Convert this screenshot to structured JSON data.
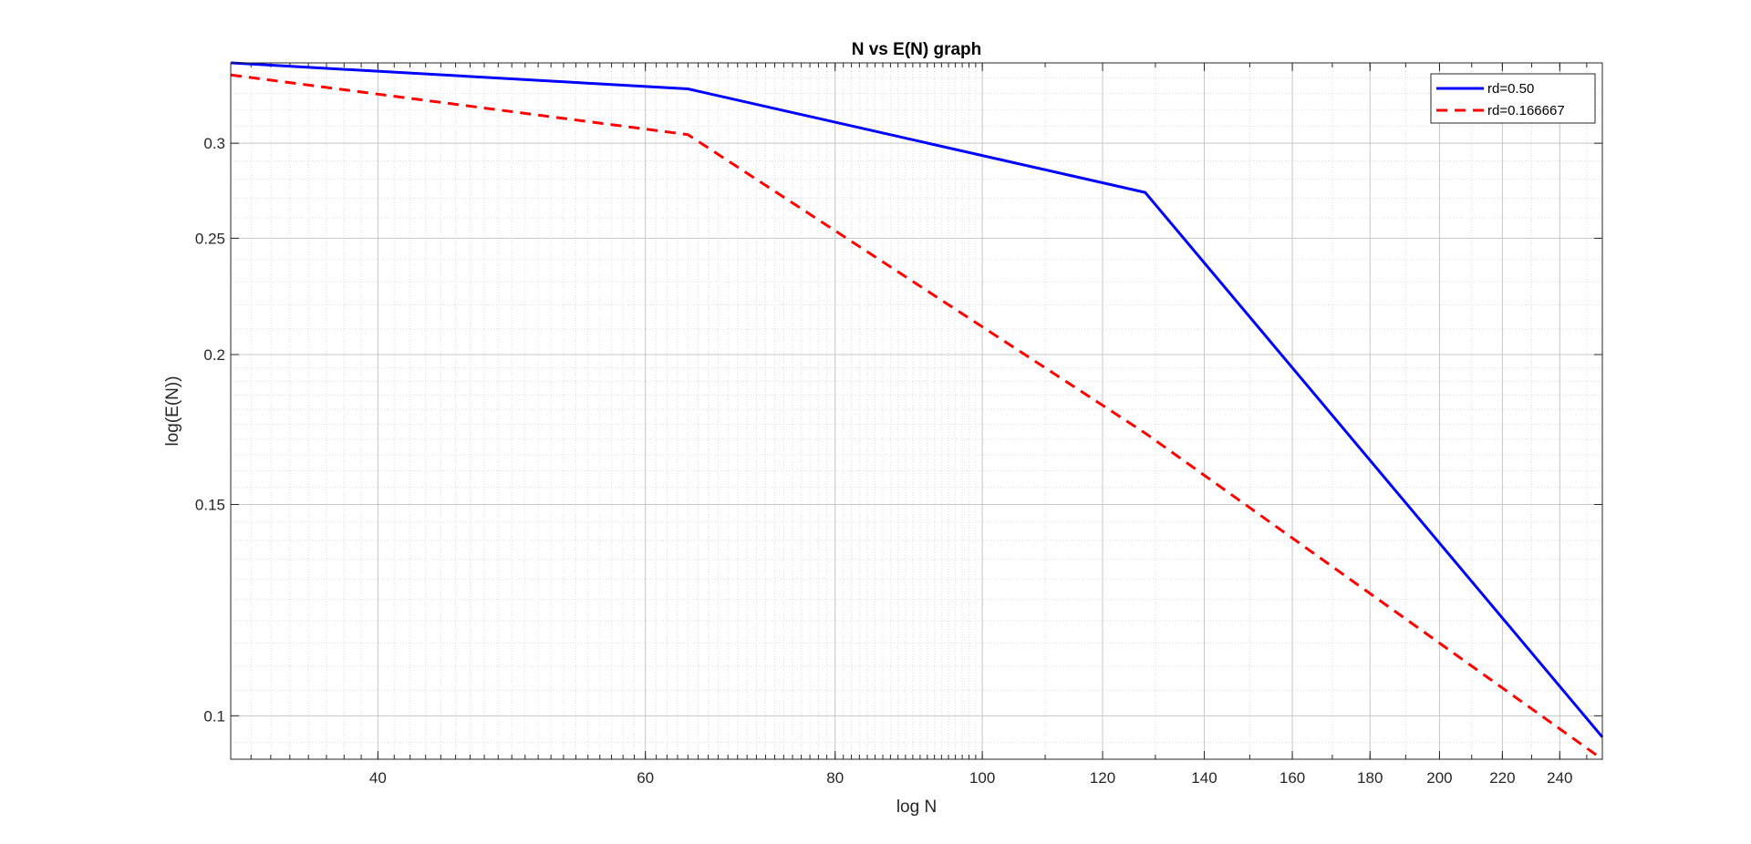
{
  "chart_data": {
    "type": "line",
    "title": "N vs E(N) graph",
    "xlabel": "log N",
    "ylabel": "log(E(N))",
    "xscale": "log",
    "yscale": "log",
    "xlim": [
      32,
      256
    ],
    "ylim": [
      0.092,
      0.35
    ],
    "grid": true,
    "minor_grid": true,
    "legend_position": "top-right",
    "xticks": [
      40,
      60,
      80,
      100,
      120,
      140,
      160,
      180,
      200,
      220,
      240
    ],
    "xtick_labels": [
      "40",
      "60",
      "80",
      "100",
      "120",
      "140",
      "160",
      "180",
      "200",
      "220",
      "240"
    ],
    "yticks": [
      0.1,
      0.15,
      0.2,
      0.25,
      0.3
    ],
    "ytick_labels": [
      "0.1",
      "0.15",
      "0.2",
      "0.25",
      "0.3"
    ],
    "x": [
      32,
      64,
      128,
      256
    ],
    "series": [
      {
        "name": "rd=0.50",
        "values": [
          0.35,
          0.333,
          0.273,
          0.096
        ],
        "color": "#0000ff",
        "style": "solid"
      },
      {
        "name": "rd=0.166667",
        "values": [
          0.342,
          0.305,
          0.172,
          0.092
        ],
        "color": "#ff0000",
        "style": "dashed"
      }
    ]
  }
}
